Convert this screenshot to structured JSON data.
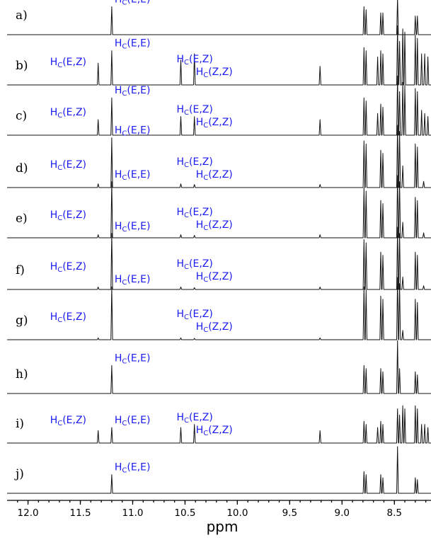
{
  "chart_data": {
    "type": "line",
    "title": "",
    "xlabel": "ppm",
    "xlim": [
      12.2,
      8.15
    ],
    "x_reversed": true,
    "x_ticks": [
      "12.0",
      "11.5",
      "11.0",
      "10.5",
      "10.0",
      "9.5",
      "9.0",
      "8.5"
    ],
    "grid": false,
    "label_prefix": "H",
    "label_subscript": "C",
    "series": [
      {
        "name": "a)",
        "peaks": [
          {
            "ppm": 11.2,
            "intensity": 0.45,
            "label": "(E,E)"
          },
          {
            "ppm": 8.79,
            "intensity": 0.45
          },
          {
            "ppm": 8.77,
            "intensity": 0.4
          },
          {
            "ppm": 8.63,
            "intensity": 0.35
          },
          {
            "ppm": 8.61,
            "intensity": 0.35
          },
          {
            "ppm": 8.47,
            "intensity": 0.6
          },
          {
            "ppm": 8.3,
            "intensity": 0.3
          },
          {
            "ppm": 8.28,
            "intensity": 0.3
          }
        ]
      },
      {
        "name": "b)",
        "peaks": [
          {
            "ppm": 11.33,
            "intensity": 0.35,
            "label": "(E,Z)"
          },
          {
            "ppm": 11.2,
            "intensity": 0.55,
            "label": "(E,E)"
          },
          {
            "ppm": 10.54,
            "intensity": 0.4,
            "label": "(E,Z)"
          },
          {
            "ppm": 10.41,
            "intensity": 0.5,
            "label": "(Z,Z)"
          },
          {
            "ppm": 9.21,
            "intensity": 0.3
          },
          {
            "ppm": 8.79,
            "intensity": 0.6
          },
          {
            "ppm": 8.77,
            "intensity": 0.55
          },
          {
            "ppm": 8.66,
            "intensity": 0.45
          },
          {
            "ppm": 8.63,
            "intensity": 0.55
          },
          {
            "ppm": 8.61,
            "intensity": 0.5
          },
          {
            "ppm": 8.47,
            "intensity": 0.95
          },
          {
            "ppm": 8.45,
            "intensity": 0.7
          },
          {
            "ppm": 8.42,
            "intensity": 0.9
          },
          {
            "ppm": 8.4,
            "intensity": 0.85
          },
          {
            "ppm": 8.3,
            "intensity": 0.8
          },
          {
            "ppm": 8.28,
            "intensity": 0.75
          },
          {
            "ppm": 8.24,
            "intensity": 0.5
          },
          {
            "ppm": 8.21,
            "intensity": 0.5
          },
          {
            "ppm": 8.18,
            "intensity": 0.45
          }
        ]
      },
      {
        "name": "c)",
        "peaks": [
          {
            "ppm": 11.33,
            "intensity": 0.25,
            "label": "(E,Z)"
          },
          {
            "ppm": 11.2,
            "intensity": 0.6,
            "label": "(E,E)"
          },
          {
            "ppm": 10.54,
            "intensity": 0.3,
            "label": "(E,Z)"
          },
          {
            "ppm": 10.41,
            "intensity": 0.3,
            "label": "(Z,Z)"
          },
          {
            "ppm": 9.21,
            "intensity": 0.25
          },
          {
            "ppm": 8.79,
            "intensity": 0.6
          },
          {
            "ppm": 8.77,
            "intensity": 0.55
          },
          {
            "ppm": 8.66,
            "intensity": 0.35
          },
          {
            "ppm": 8.63,
            "intensity": 0.5
          },
          {
            "ppm": 8.61,
            "intensity": 0.45
          },
          {
            "ppm": 8.47,
            "intensity": 0.95
          },
          {
            "ppm": 8.45,
            "intensity": 0.7
          },
          {
            "ppm": 8.42,
            "intensity": 0.85
          },
          {
            "ppm": 8.4,
            "intensity": 0.8
          },
          {
            "ppm": 8.3,
            "intensity": 0.75
          },
          {
            "ppm": 8.28,
            "intensity": 0.7
          },
          {
            "ppm": 8.24,
            "intensity": 0.4
          },
          {
            "ppm": 8.21,
            "intensity": 0.35
          },
          {
            "ppm": 8.18,
            "intensity": 0.3
          }
        ]
      },
      {
        "name": "d)",
        "peaks": [
          {
            "ppm": 11.33,
            "intensity": 0.06,
            "label": "(E,Z)"
          },
          {
            "ppm": 11.2,
            "intensity": 0.8,
            "label": "(E,E)"
          },
          {
            "ppm": 10.54,
            "intensity": 0.06,
            "label": "(E,Z)"
          },
          {
            "ppm": 10.41,
            "intensity": 0.05,
            "label": "(Z,Z)"
          },
          {
            "ppm": 9.21,
            "intensity": 0.05
          },
          {
            "ppm": 8.79,
            "intensity": 0.75
          },
          {
            "ppm": 8.77,
            "intensity": 0.7
          },
          {
            "ppm": 8.63,
            "intensity": 0.6
          },
          {
            "ppm": 8.61,
            "intensity": 0.55
          },
          {
            "ppm": 8.47,
            "intensity": 1.0
          },
          {
            "ppm": 8.45,
            "intensity": 0.9
          },
          {
            "ppm": 8.42,
            "intensity": 0.35
          },
          {
            "ppm": 8.3,
            "intensity": 0.7
          },
          {
            "ppm": 8.28,
            "intensity": 0.65
          },
          {
            "ppm": 8.22,
            "intensity": 0.1
          }
        ]
      },
      {
        "name": "e)",
        "peaks": [
          {
            "ppm": 11.33,
            "intensity": 0.05,
            "label": "(E,Z)"
          },
          {
            "ppm": 11.2,
            "intensity": 0.9,
            "label": "(E,E)"
          },
          {
            "ppm": 10.54,
            "intensity": 0.05,
            "label": "(E,Z)"
          },
          {
            "ppm": 10.41,
            "intensity": 0.04,
            "label": "(Z,Z)"
          },
          {
            "ppm": 9.21,
            "intensity": 0.05
          },
          {
            "ppm": 8.79,
            "intensity": 0.8
          },
          {
            "ppm": 8.77,
            "intensity": 0.75
          },
          {
            "ppm": 8.63,
            "intensity": 0.6
          },
          {
            "ppm": 8.61,
            "intensity": 0.55
          },
          {
            "ppm": 8.47,
            "intensity": 1.0
          },
          {
            "ppm": 8.45,
            "intensity": 0.9
          },
          {
            "ppm": 8.42,
            "intensity": 0.25
          },
          {
            "ppm": 8.3,
            "intensity": 0.65
          },
          {
            "ppm": 8.28,
            "intensity": 0.6
          },
          {
            "ppm": 8.22,
            "intensity": 0.08
          }
        ]
      },
      {
        "name": "f)",
        "peaks": [
          {
            "ppm": 11.33,
            "intensity": 0.04,
            "label": "(E,Z)"
          },
          {
            "ppm": 11.2,
            "intensity": 0.9,
            "label": "(E,E)"
          },
          {
            "ppm": 10.54,
            "intensity": 0.04,
            "label": "(E,Z)"
          },
          {
            "ppm": 10.41,
            "intensity": 0.03,
            "label": "(Z,Z)"
          },
          {
            "ppm": 9.21,
            "intensity": 0.04
          },
          {
            "ppm": 8.79,
            "intensity": 0.8
          },
          {
            "ppm": 8.77,
            "intensity": 0.75
          },
          {
            "ppm": 8.63,
            "intensity": 0.6
          },
          {
            "ppm": 8.61,
            "intensity": 0.55
          },
          {
            "ppm": 8.47,
            "intensity": 1.0
          },
          {
            "ppm": 8.45,
            "intensity": 0.9
          },
          {
            "ppm": 8.42,
            "intensity": 0.2
          },
          {
            "ppm": 8.3,
            "intensity": 0.6
          },
          {
            "ppm": 8.28,
            "intensity": 0.55
          },
          {
            "ppm": 8.22,
            "intensity": 0.06
          }
        ]
      },
      {
        "name": "g)",
        "peaks": [
          {
            "ppm": 11.33,
            "intensity": 0.03,
            "label": "(E,Z)"
          },
          {
            "ppm": 11.2,
            "intensity": 0.85,
            "label": "(E,E)"
          },
          {
            "ppm": 10.54,
            "intensity": 0.03,
            "label": "(E,Z)"
          },
          {
            "ppm": 10.41,
            "intensity": 0.02,
            "label": "(Z,Z)"
          },
          {
            "ppm": 9.21,
            "intensity": 0.03
          },
          {
            "ppm": 8.79,
            "intensity": 0.85
          },
          {
            "ppm": 8.77,
            "intensity": 0.8
          },
          {
            "ppm": 8.63,
            "intensity": 0.7
          },
          {
            "ppm": 8.61,
            "intensity": 0.65
          },
          {
            "ppm": 8.47,
            "intensity": 1.0
          },
          {
            "ppm": 8.45,
            "intensity": 0.9
          },
          {
            "ppm": 8.42,
            "intensity": 0.15
          },
          {
            "ppm": 8.3,
            "intensity": 0.65
          },
          {
            "ppm": 8.28,
            "intensity": 0.6
          }
        ]
      },
      {
        "name": "h)",
        "peaks": [
          {
            "ppm": 11.2,
            "intensity": 0.45,
            "label": "(E,E)"
          },
          {
            "ppm": 8.79,
            "intensity": 0.45
          },
          {
            "ppm": 8.77,
            "intensity": 0.4
          },
          {
            "ppm": 8.63,
            "intensity": 0.4
          },
          {
            "ppm": 8.61,
            "intensity": 0.35
          },
          {
            "ppm": 8.47,
            "intensity": 0.85
          },
          {
            "ppm": 8.45,
            "intensity": 0.4
          },
          {
            "ppm": 8.3,
            "intensity": 0.35
          },
          {
            "ppm": 8.28,
            "intensity": 0.3
          }
        ]
      },
      {
        "name": "i)",
        "peaks": [
          {
            "ppm": 11.33,
            "intensity": 0.2,
            "label": "(E,Z)"
          },
          {
            "ppm": 11.2,
            "intensity": 0.25,
            "label": "(E,E)"
          },
          {
            "ppm": 10.54,
            "intensity": 0.25,
            "label": "(E,Z)"
          },
          {
            "ppm": 10.41,
            "intensity": 0.3,
            "label": "(Z,Z)"
          },
          {
            "ppm": 9.21,
            "intensity": 0.2
          },
          {
            "ppm": 8.79,
            "intensity": 0.35
          },
          {
            "ppm": 8.77,
            "intensity": 0.3
          },
          {
            "ppm": 8.66,
            "intensity": 0.25
          },
          {
            "ppm": 8.63,
            "intensity": 0.35
          },
          {
            "ppm": 8.61,
            "intensity": 0.3
          },
          {
            "ppm": 8.47,
            "intensity": 0.55
          },
          {
            "ppm": 8.45,
            "intensity": 0.45
          },
          {
            "ppm": 8.42,
            "intensity": 0.6
          },
          {
            "ppm": 8.4,
            "intensity": 0.55
          },
          {
            "ppm": 8.3,
            "intensity": 0.6
          },
          {
            "ppm": 8.28,
            "intensity": 0.55
          },
          {
            "ppm": 8.24,
            "intensity": 0.3
          },
          {
            "ppm": 8.21,
            "intensity": 0.3
          },
          {
            "ppm": 8.18,
            "intensity": 0.25
          }
        ]
      },
      {
        "name": "j)",
        "peaks": [
          {
            "ppm": 11.2,
            "intensity": 0.3,
            "label": "(E,E)"
          },
          {
            "ppm": 8.79,
            "intensity": 0.35
          },
          {
            "ppm": 8.77,
            "intensity": 0.3
          },
          {
            "ppm": 8.63,
            "intensity": 0.3
          },
          {
            "ppm": 8.61,
            "intensity": 0.25
          },
          {
            "ppm": 8.47,
            "intensity": 0.75
          },
          {
            "ppm": 8.3,
            "intensity": 0.25
          },
          {
            "ppm": 8.28,
            "intensity": 0.22
          }
        ]
      }
    ]
  }
}
